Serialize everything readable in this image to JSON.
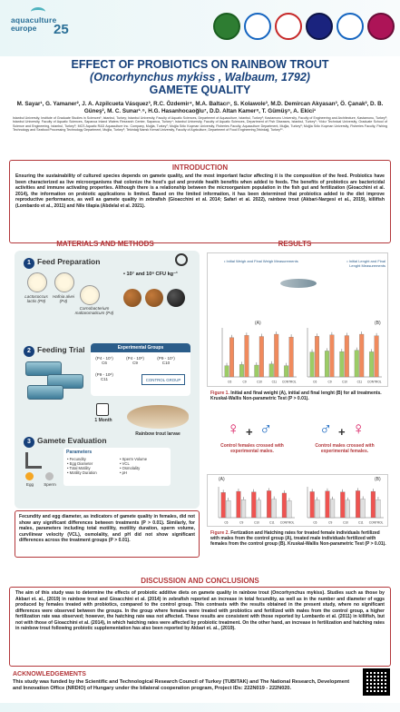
{
  "colors": {
    "accent": "#b3373a",
    "title": "#16407a"
  },
  "header": {
    "logo": {
      "line1": "aquaculture",
      "line2": "europe",
      "number": "25"
    },
    "seals": [
      "seal-1",
      "seal-2",
      "seal-3",
      "seal-4",
      "seal-5",
      "seal-6"
    ]
  },
  "title": {
    "line1": "EFFECT OF PROBIOTICS ON RAINBOW TROUT",
    "line2": "(Oncorhynchus mykiss , Walbaum, 1792)",
    "line3": "GAMETE QUALITY"
  },
  "authors": "M. Sayar¹, G. Yamaner², J. A. Azpilcueta Vásquez³, R.C. Özdemir⁴, M.A. Baltacı⁵, S. Kolawole³, M.D. Demircan Akyasan³, Ö. Çanak², D. B. Güneş², M. C. Sunar¹˒⁶, H.G. Hasanhocaoğlu⁷, D.D. Altan Kamer⁸, T. Gümüş⁹, A. Ekici¹",
  "affiliations": "Istanbul University, Institute of Graduate Studies in Sciences¹, Istanbul, Turkey; Istanbul University, Faculty of Aquatic Sciences, Department of Aquaculture, Istanbul, Turkey²; Kastamonu University, Faculty of Engineering and Architecture, Kastamonu, Turkey³; Istanbul University, Faculty of Aquatic Sciences, Sapanca Inland Waters Research Center, Sapanca, Turkey⁴; Istanbul University, Faculty of Aquatic Sciences, Department of Fish Diseases, Istanbul, Turkey⁵; Yıldız Technical University, Graduate School of Science and Engineering, Istanbul, Turkey⁶; MCS Aquatic R&D Aquaculture Inc. Company, Muğla, Turkey⁷; Muğla Sıtkı Koçman University, Fisheries Faculty, Aquaculture Department, Muğla, Turkey⁸; Muğla Sıtkı Koçman University, Fisheries Faculty, Fishing Technology and Seafood Processing Technology Department, Muğla, Turkey⁹; Tekirdağ Namık Kemal University, Faculty of Agriculture, Department of Food Engineering,Tekirdağ, Turkey¹⁰.",
  "introduction": {
    "heading": "INTRODUCTION",
    "text": "Ensuring the sustainability of cultured species depends on gamete quality, and the most important factor affecting it is the composition of the feed. Probiotics have been characterized as live microorganisms that colonize the host's gut and provide health benefits when added to feeds. The benefits of probiotics are bactericidal activities and immune activating properties. Although there is a relationship between the microorganism population in the fish gut and fertilization (Gioacchini et al. 2014), the information on probiotic applications is limited. Based on the limited information, it has been determined that probiotics added to the diet improve reproductive performance, as well as gamete quality in zebrafish (Gioacchini et al. 2014; Safari et al. 2022), rainbow trout (Akbari-Nargesi et al., 2019), killifish (Lombardo et al., 2011) and Nile tilapia (Abdelal et al. 2021)."
  },
  "methods": {
    "heading": "MATERIALS AND METHODS",
    "step1": {
      "num": "1",
      "title": "Feed Preparation",
      "cfu": "• 10⁷ and 10⁸ CFU kg⁻¹",
      "bact1": "Lactococcus lactis (P9)",
      "bact2": "Hafnia alvei (P4)",
      "bact3": "Carnobacterium maltaromaticum (P4)"
    },
    "step2": {
      "num": "2",
      "title": "Feeding Trial",
      "groups_title": "Experimental Groups",
      "groups": [
        "(P4 - 10⁷) C6",
        "(P4 - 10⁸) C9",
        "(P9 - 10⁷) C10",
        "(P9 - 10⁸) C11"
      ],
      "control": "CONTROL GROUP",
      "duration": "1 Month",
      "fish_label": "Rainbow trout larvae"
    },
    "step3": {
      "num": "3",
      "title": "Gamete Evaluation",
      "egg": "Egg",
      "sperm": "Sperm",
      "params_title": "Parameters",
      "params_left": [
        "• Fecundity",
        "• Egg Diameter",
        "• Total Motility",
        "• Motility Duration"
      ],
      "params_right": [
        "• Sperm Volume",
        "• VCL",
        "• Osmolality",
        "• pH"
      ]
    },
    "summary": "Fecundity and egg diameter, as indicators of gamete quality in females, did not show any significant differences between treatments (P > 0.01). Similarly, for males, parameters including total motility, motility duration, sperm volume, curvilinear velocity (VCL), osmolality, and pH did not show significant differences across the treatment groups (P > 0.01)."
  },
  "results": {
    "heading": "RESULTS",
    "legend_a": "• Initial Weigh and Final Weigh Measurements",
    "legend_b": "• Initial Lenght and Final Lenght Measurements",
    "panel_a": "(A)",
    "panel_b": "(B)",
    "fig1_label": "Figure 1.",
    "fig1_text": " Initial and final weight (A), initial and final lenght (B) for all treatments. Kruskal-Wallis Non-parametric Test (P > 0.01).",
    "cross1": "Control females crossed with experimental males.",
    "cross2": "Control males crossed with experimental females.",
    "panel_a2": "(A)",
    "panel_b2": "(B)",
    "fig2_label": "Figure 2.",
    "fig2_text": " Fertization and Hatching rates for treated female individuals fertilized with males from the control group (A), treated male individuals fertilized with females from the control group (B). Kruskal-Wallis Non-parametric Test (P > 0.01)."
  },
  "discussion": {
    "heading": "DISCUSSION AND CONCLUSIONS",
    "text": "The aim of this study was to determine the effects of probiotic additive diets on gamete quality in rainbow trout (Oncorhynchus mykiss). Studies such as those by Akbari et. al., (2019) in rainbow trout and Gioacchini et al. (2014) in zebrafish reported an increase in total fecundity, as well as in the number and diameter of eggs produced by females treated with probiotics, compared to the control group. This contrasts with the results obtained in the present study, where no significant differences were observed between the groups. In the group where females were treated with probiotics and fertilized with males from the control group, a higher fertilization rate was observed; however, the hatching rate was not affected. These results are consistent with those reported by Lombardo et al. (2011) in killifish, but not with those of Gioacchini et al. (2014), in which hatching rates were affected by probiotic treatment. On the other hand, an increase in fertilization and hatching rates in rainbow trout following probiotic supplementation has also been reported by Akbari et. al., (2019)."
  },
  "acknowledgements": {
    "heading": "ACKNOWLEDGEMENTS",
    "text": "This study was funded by the Scientific and Technological Research Council of Turkey (TUBITAK) and The National Research, Development and Innovation Office (NRDIO) of Hungary under the bilateral cooperation program, Project IDs: 222N019 - 222N020."
  },
  "chart_data": [
    {
      "type": "bar",
      "title": "(A)",
      "categories": [
        "C6",
        "C9",
        "C10",
        "C11",
        "CONTROL"
      ],
      "series": [
        {
          "name": "",
          "values": [
            20,
            22,
            21,
            23,
            20
          ]
        },
        {
          "name": "",
          "values": [
            70,
            74,
            72,
            76,
            71
          ]
        }
      ],
      "color_pair": [
        "#9ccc65",
        "#f08a5d"
      ]
    },
    {
      "type": "bar",
      "title": "(B)",
      "categories": [
        "C6",
        "C9",
        "C10",
        "C11",
        "CONTROL"
      ],
      "series": [
        {
          "name": "",
          "values": [
            11,
            11.5,
            11.2,
            11.8,
            11.1
          ]
        },
        {
          "name": "",
          "values": [
            18,
            18.6,
            18.3,
            18.9,
            18.2
          ]
        }
      ],
      "color_pair": [
        "#9ccc65",
        "#f08a5d"
      ]
    },
    {
      "type": "bar",
      "title": "(A)",
      "categories": [
        "C6",
        "C9",
        "C10",
        "C11",
        "CONTROL"
      ],
      "series": [
        {
          "name": "",
          "values": [
            88,
            92,
            90,
            94,
            86
          ]
        },
        {
          "name": "",
          "values": [
            60,
            63,
            61,
            65,
            59
          ]
        }
      ],
      "color_pair": [
        "#ef5350",
        "#e0e0e0"
      ]
    },
    {
      "type": "bar",
      "title": "(B)",
      "categories": [
        "C6",
        "C9",
        "C10",
        "C11",
        "CONTROL"
      ],
      "series": [
        {
          "name": "",
          "values": [
            85,
            87,
            84,
            88,
            86
          ]
        },
        {
          "name": "",
          "values": [
            58,
            60,
            57,
            61,
            59
          ]
        }
      ],
      "color_pair": [
        "#ef5350",
        "#e0e0e0"
      ]
    }
  ]
}
